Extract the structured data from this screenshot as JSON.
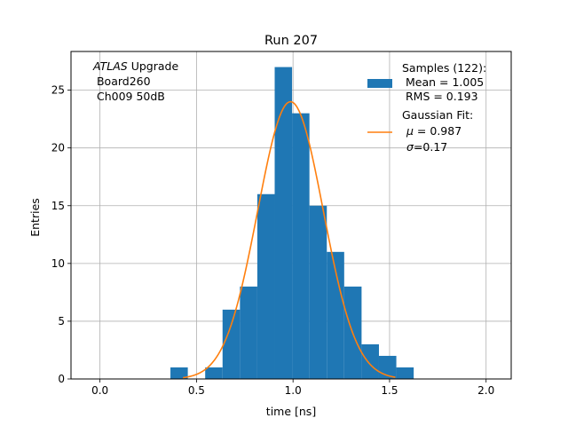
{
  "chart_data": {
    "type": "bar",
    "title": "Run 207",
    "xlabel": "time [ns]",
    "ylabel": "Entries",
    "xlim": [
      -0.15,
      2.13
    ],
    "ylim": [
      0,
      28.35
    ],
    "xticks": [
      0.0,
      0.5,
      1.0,
      1.5,
      2.0
    ],
    "xtick_labels": [
      "0.0",
      "0.5",
      "1.0",
      "1.5",
      "2.0"
    ],
    "yticks": [
      0,
      5,
      10,
      15,
      20,
      25
    ],
    "ytick_labels": [
      "0",
      "5",
      "10",
      "15",
      "20",
      "25"
    ],
    "grid": true,
    "bar_color": "#1f77b4",
    "fit_color": "#ff7f0e",
    "histogram": {
      "bin_width": 0.09,
      "bin_edges": [
        0.365,
        0.455,
        0.545,
        0.635,
        0.725,
        0.815,
        0.905,
        0.995,
        1.085,
        1.175,
        1.265,
        1.355,
        1.445,
        1.535,
        1.625
      ],
      "counts": [
        1,
        0,
        1,
        6,
        8,
        16,
        27,
        23,
        15,
        11,
        8,
        3,
        2,
        1
      ]
    },
    "fit": {
      "mu": 0.987,
      "sigma": 0.17,
      "amplitude": 24.0,
      "x_range": [
        0.43,
        1.53
      ]
    },
    "annotation": {
      "italic": "ATLAS",
      "rest": " Upgrade",
      "line2": " Board260",
      "line3": " Ch009 50dB"
    },
    "legend": {
      "position": "top-right",
      "samples": {
        "line1": "Samples (122):",
        "line2": " Mean = 1.005",
        "line3": " RMS = 0.193"
      },
      "fit": {
        "line1": "Gaussian Fit:",
        "line2_sym": "μ",
        "line2_rest": " = 0.987",
        "line3_sym": "σ",
        "line3_rest": "=0.17"
      }
    }
  }
}
